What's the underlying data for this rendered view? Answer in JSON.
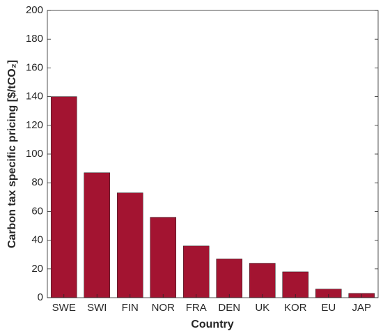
{
  "chart_data": {
    "type": "bar",
    "xlabel": "Country",
    "ylabel": "Carbon tax specific pricing [$/tCO₂]",
    "categories": [
      "SWE",
      "SWI",
      "FIN",
      "NOR",
      "FRA",
      "DEN",
      "UK",
      "KOR",
      "EU",
      "JAP"
    ],
    "values": [
      140,
      87,
      73,
      56,
      36,
      27,
      24,
      18,
      6,
      3
    ],
    "color": "#a31431",
    "ylim": [
      0,
      200
    ],
    "yticks": [
      0,
      20,
      40,
      60,
      80,
      100,
      120,
      140,
      160,
      180,
      200
    ],
    "grid": false
  }
}
